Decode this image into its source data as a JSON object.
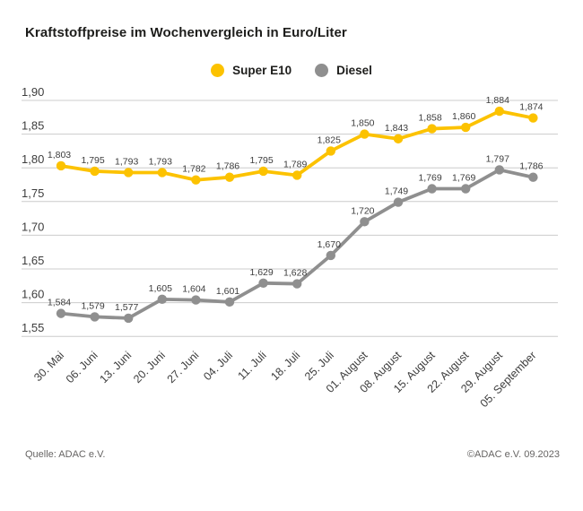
{
  "title": "Kraftstoffpreise im Wochenvergleich in Euro/Liter",
  "legend": {
    "items": [
      {
        "label": "Super E10",
        "color": "#fcc200"
      },
      {
        "label": "Diesel",
        "color": "#8f8f8f"
      }
    ]
  },
  "footer": {
    "source": "Quelle: ADAC e.V.",
    "copyright": "©ADAC e.V. 09.2023"
  },
  "colors": {
    "super_e10": "#fcc200",
    "diesel": "#8f8f8f",
    "gridline": "#cccccc",
    "axis_text": "#3d3d3d",
    "title_text": "#1d1d1b"
  },
  "chart_data": {
    "type": "line",
    "title": "Kraftstoffpreise im Wochenvergleich in Euro/Liter",
    "xlabel": "",
    "ylabel": "Euro/Liter",
    "ylim": [
      1.55,
      1.9
    ],
    "grid": true,
    "legend_position": "top-center",
    "yticks": [
      "1,90",
      "1,85",
      "1,80",
      "1,75",
      "1,70",
      "1,65",
      "1,60",
      "1,55"
    ],
    "categories": [
      "30. Mai",
      "06. Juni",
      "13. Juni",
      "20. Juni",
      "27. Juni",
      "04. Juli",
      "11. Juli",
      "18. Juli",
      "25. Juli",
      "01. August",
      "08. August",
      "15. August",
      "22. August",
      "29. August",
      "05. September"
    ],
    "series": [
      {
        "name": "Super E10",
        "color": "#fcc200",
        "values": [
          1.803,
          1.795,
          1.793,
          1.793,
          1.782,
          1.786,
          1.795,
          1.789,
          1.825,
          1.85,
          1.843,
          1.858,
          1.86,
          1.884,
          1.874
        ],
        "value_labels": [
          "1,803",
          "1,795",
          "1,793",
          "1,793",
          "1,782",
          "1,786",
          "1,795",
          "1,789",
          "1,825",
          "1,850",
          "1,843",
          "1,858",
          "1,860",
          "1,884",
          "1,874"
        ]
      },
      {
        "name": "Diesel",
        "color": "#8f8f8f",
        "values": [
          1.584,
          1.579,
          1.577,
          1.605,
          1.604,
          1.601,
          1.629,
          1.628,
          1.67,
          1.72,
          1.749,
          1.769,
          1.769,
          1.797,
          1.786
        ],
        "value_labels": [
          "1,584",
          "1,579",
          "1,577",
          "1,605",
          "1,604",
          "1,601",
          "1,629",
          "1,628",
          "1,670",
          "1,720",
          "1,749",
          "1,769",
          "1,769",
          "1,797",
          "1,786"
        ]
      }
    ]
  }
}
